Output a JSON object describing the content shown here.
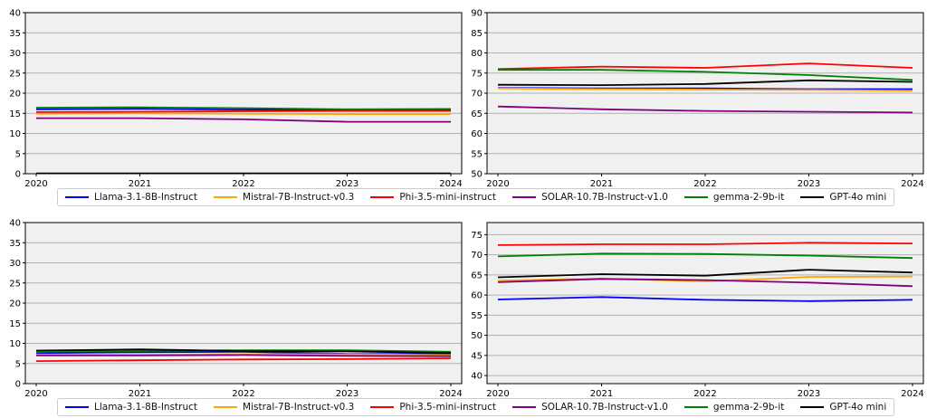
{
  "chart_data": [
    {
      "type": "line",
      "title": "",
      "xlabel": "",
      "ylabel": "",
      "x": [
        "2020",
        "2021",
        "2022",
        "2023",
        "2024"
      ],
      "xticks": [
        "2020",
        "2021",
        "2022",
        "2023",
        "2024"
      ],
      "ylim": [
        0,
        40
      ],
      "yticks": [
        "0",
        "5",
        "10",
        "15",
        "20",
        "25",
        "30",
        "35",
        "40"
      ],
      "grid": true,
      "series": [
        {
          "name": "Llama-3.1-8B-Instruct",
          "color": "#0000ff",
          "values": [
            16.0,
            16.1,
            15.9,
            15.8,
            15.9
          ]
        },
        {
          "name": "Mistral-7B-Instruct-v0.3",
          "color": "#ffa500",
          "values": [
            14.9,
            15.0,
            14.9,
            14.8,
            14.8
          ]
        },
        {
          "name": "Phi-3.5-mini-instruct",
          "color": "#ff0000",
          "values": [
            15.3,
            15.4,
            15.5,
            15.6,
            15.6
          ]
        },
        {
          "name": "SOLAR-10.7B-Instruct-v1.0",
          "color": "#800080",
          "values": [
            13.8,
            13.8,
            13.5,
            12.9,
            12.9
          ]
        },
        {
          "name": "gemma-2-9b-it",
          "color": "#008000",
          "values": [
            16.4,
            16.5,
            16.3,
            16.0,
            16.1
          ]
        },
        {
          "name": "GPT-4o mini",
          "color": "#000000",
          "values": [
            0.1,
            0.1,
            0.1,
            0.1,
            0.1
          ]
        }
      ]
    },
    {
      "type": "line",
      "title": "",
      "xlabel": "",
      "ylabel": "",
      "x": [
        "2020",
        "2021",
        "2022",
        "2023",
        "2024"
      ],
      "xticks": [
        "2020",
        "2021",
        "2022",
        "2023",
        "2024"
      ],
      "ylim": [
        50,
        90
      ],
      "yticks": [
        "50",
        "55",
        "60",
        "65",
        "70",
        "75",
        "80",
        "85",
        "90"
      ],
      "grid": true,
      "series": [
        {
          "name": "Llama-3.1-8B-Instruct",
          "color": "#0000ff",
          "values": [
            71.3,
            71.2,
            71.2,
            71.0,
            71.0
          ]
        },
        {
          "name": "Mistral-7B-Instruct-v0.3",
          "color": "#ffa500",
          "values": [
            71.2,
            71.0,
            70.9,
            70.8,
            70.6
          ]
        },
        {
          "name": "Phi-3.5-mini-instruct",
          "color": "#ff0000",
          "values": [
            76.0,
            76.6,
            76.3,
            77.4,
            76.3
          ]
        },
        {
          "name": "SOLAR-10.7B-Instruct-v1.0",
          "color": "#800080",
          "values": [
            66.7,
            66.0,
            65.6,
            65.4,
            65.2
          ]
        },
        {
          "name": "gemma-2-9b-it",
          "color": "#008000",
          "values": [
            75.8,
            75.8,
            75.3,
            74.5,
            73.3
          ]
        },
        {
          "name": "GPT-4o mini",
          "color": "#000000",
          "values": [
            72.1,
            72.0,
            72.3,
            73.2,
            72.8
          ]
        }
      ]
    },
    {
      "type": "line",
      "title": "",
      "xlabel": "",
      "ylabel": "",
      "x": [
        "2020",
        "2021",
        "2022",
        "2023",
        "2024"
      ],
      "xticks": [
        "2020",
        "2021",
        "2022",
        "2023",
        "2024"
      ],
      "ylim": [
        0,
        40
      ],
      "yticks": [
        "0",
        "5",
        "10",
        "15",
        "20",
        "25",
        "30",
        "35",
        "40"
      ],
      "grid": true,
      "series": [
        {
          "name": "Llama-3.1-8B-Instruct",
          "color": "#0000ff",
          "values": [
            7.6,
            7.8,
            7.9,
            7.4,
            7.4
          ]
        },
        {
          "name": "Mistral-7B-Instruct-v0.3",
          "color": "#ffa500",
          "values": [
            7.2,
            7.2,
            7.3,
            7.3,
            7.1
          ]
        },
        {
          "name": "Phi-3.5-mini-instruct",
          "color": "#ff0000",
          "values": [
            5.6,
            5.8,
            6.0,
            6.1,
            6.3
          ]
        },
        {
          "name": "SOLAR-10.7B-Instruct-v1.0",
          "color": "#800080",
          "values": [
            7.0,
            7.0,
            7.1,
            6.9,
            6.8
          ]
        },
        {
          "name": "gemma-2-9b-it",
          "color": "#008000",
          "values": [
            8.1,
            8.1,
            8.3,
            8.3,
            7.9
          ]
        },
        {
          "name": "GPT-4o mini",
          "color": "#000000",
          "values": [
            8.2,
            8.5,
            8.1,
            8.0,
            7.6
          ]
        }
      ]
    },
    {
      "type": "line",
      "title": "",
      "xlabel": "",
      "ylabel": "",
      "x": [
        "2020",
        "2021",
        "2022",
        "2023",
        "2024"
      ],
      "xticks": [
        "2020",
        "2021",
        "2022",
        "2023",
        "2024"
      ],
      "ylim": [
        38,
        78
      ],
      "yticks": [
        "40",
        "45",
        "50",
        "55",
        "60",
        "65",
        "70",
        "75"
      ],
      "grid": true,
      "series": [
        {
          "name": "Llama-3.1-8B-Instruct",
          "color": "#0000ff",
          "values": [
            58.9,
            59.5,
            58.8,
            58.5,
            58.8
          ]
        },
        {
          "name": "Mistral-7B-Instruct-v0.3",
          "color": "#ffa500",
          "values": [
            63.6,
            64.1,
            63.4,
            64.5,
            64.6
          ]
        },
        {
          "name": "Phi-3.5-mini-instruct",
          "color": "#ff0000",
          "values": [
            72.4,
            72.6,
            72.6,
            73.0,
            72.8
          ]
        },
        {
          "name": "SOLAR-10.7B-Instruct-v1.0",
          "color": "#800080",
          "values": [
            63.2,
            64.0,
            63.7,
            63.1,
            62.2
          ]
        },
        {
          "name": "gemma-2-9b-it",
          "color": "#008000",
          "values": [
            69.6,
            70.3,
            70.2,
            69.8,
            69.2
          ]
        },
        {
          "name": "GPT-4o mini",
          "color": "#000000",
          "values": [
            64.4,
            65.2,
            64.8,
            66.3,
            65.6
          ]
        }
      ]
    }
  ]
}
